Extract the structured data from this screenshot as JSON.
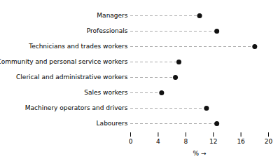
{
  "chart_data": {
    "type": "lollipop",
    "categories": [
      "Managers",
      "Professionals",
      "Technicians and trades workers",
      "Community and personal service workers",
      "Clerical and administrative workers",
      "Sales workers",
      "Machinery operators and drivers",
      "Labourers"
    ],
    "values": [
      10.0,
      12.5,
      18.0,
      7.0,
      6.5,
      4.5,
      11.0,
      12.5
    ],
    "color": "#111111",
    "line_style": "dashed",
    "xlabel": "%",
    "xlim": [
      0,
      20
    ],
    "xticks": [
      0,
      4,
      8,
      12,
      16,
      20
    ],
    "grid": false
  }
}
